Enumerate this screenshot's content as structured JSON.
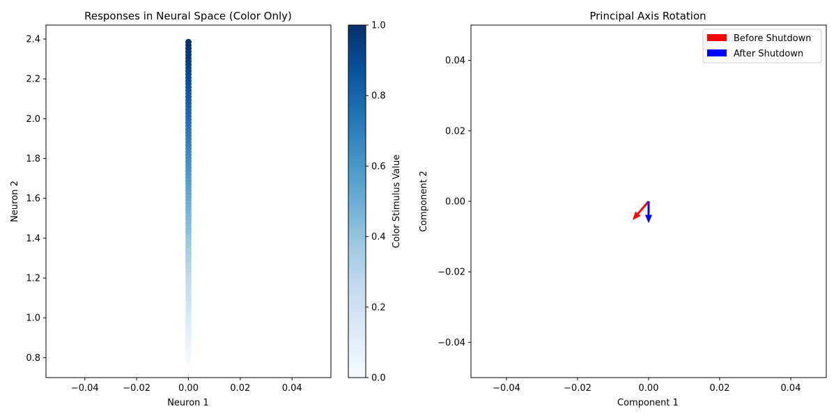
{
  "chart_data": [
    {
      "type": "scatter",
      "title": "Responses in Neural Space (Color Only)",
      "xlabel": "Neuron 1",
      "ylabel": "Neuron 2",
      "xlim": [
        -0.055,
        0.055
      ],
      "ylim": [
        0.7,
        2.47
      ],
      "xticks": [
        -0.04,
        -0.02,
        0.0,
        0.02,
        0.04
      ],
      "xtick_labels": [
        "−0.04",
        "−0.02",
        "0.00",
        "0.02",
        "0.04"
      ],
      "yticks": [
        0.8,
        1.0,
        1.2,
        1.4,
        1.6,
        1.8,
        2.0,
        2.2,
        2.4
      ],
      "ytick_labels": [
        "0.8",
        "1.0",
        "1.2",
        "1.4",
        "1.6",
        "1.8",
        "2.0",
        "2.2",
        "2.4"
      ],
      "points": {
        "x": 0.0,
        "y_start": 0.78,
        "y_end": 2.385,
        "count": 100,
        "color_value_start": 0.0,
        "color_value_end": 1.0
      },
      "colorbar": {
        "label": "Color Stimulus Value",
        "cmap": "Blues",
        "range": [
          0.0,
          1.0
        ],
        "ticks": [
          0.0,
          0.2,
          0.4,
          0.6,
          0.8,
          1.0
        ],
        "tick_labels": [
          "0.0",
          "0.2",
          "0.4",
          "0.6",
          "0.8",
          "1.0"
        ]
      },
      "grid": false
    },
    {
      "type": "quiver",
      "title": "Principal Axis Rotation",
      "xlabel": "Component 1",
      "ylabel": "Component 2",
      "xlim": [
        -0.05,
        0.05
      ],
      "ylim": [
        -0.05,
        0.05
      ],
      "xticks": [
        -0.04,
        -0.02,
        0.0,
        0.02,
        0.04
      ],
      "xtick_labels": [
        "−0.04",
        "−0.02",
        "0.00",
        "0.02",
        "0.04"
      ],
      "yticks": [
        -0.04,
        -0.02,
        0.0,
        0.02,
        0.04
      ],
      "ytick_labels": [
        "−0.04",
        "−0.02",
        "0.00",
        "0.02",
        "0.04"
      ],
      "series": [
        {
          "name": "Before Shutdown",
          "color": "#ff0000",
          "x0": 0.0,
          "y0": 0.0,
          "dx": -0.0045,
          "dy": -0.0053
        },
        {
          "name": "After Shutdown",
          "color": "#0000ff",
          "x0": 0.0,
          "y0": 0.0,
          "dx": 0.0,
          "dy": -0.0062
        }
      ],
      "legend": "upper right",
      "grid": false
    }
  ]
}
